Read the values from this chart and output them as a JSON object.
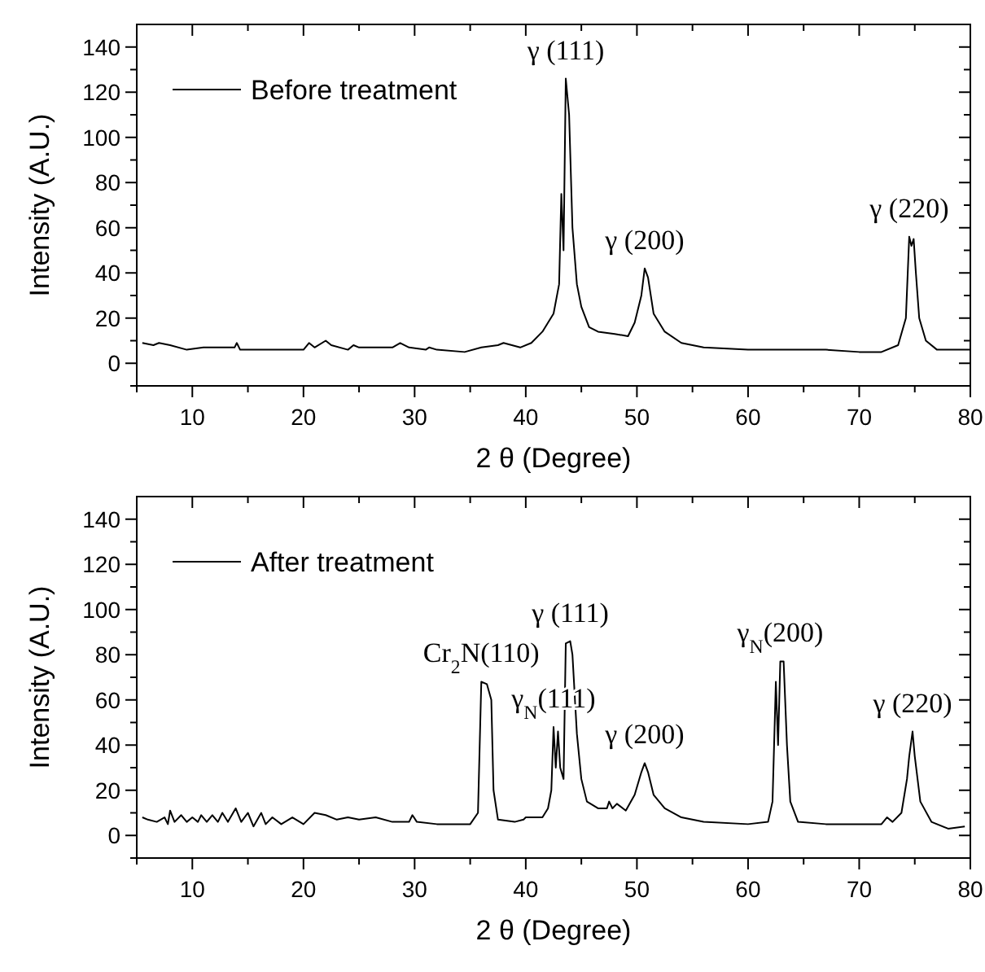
{
  "chart_data": [
    {
      "type": "line",
      "xlabel": "2 θ (Degree)",
      "ylabel": "Intensity (A.U.)",
      "legend": "top left",
      "xlim": [
        5,
        80
      ],
      "ylim": [
        -10,
        150
      ],
      "xticks": [
        {
          "value": 5,
          "label": null
        },
        10,
        {
          "value": 15,
          "label": null
        },
        20,
        {
          "value": 25,
          "label": null
        },
        30,
        {
          "value": 35,
          "label": null
        },
        40,
        {
          "value": 45,
          "label": null
        },
        50,
        {
          "value": 55,
          "label": null
        },
        60,
        {
          "value": 65,
          "label": null
        },
        70,
        {
          "value": 75,
          "label": null
        },
        80
      ],
      "yticks": [
        {
          "value": -10,
          "label": null
        },
        0,
        {
          "value": 10,
          "label": null
        },
        20,
        {
          "value": 30,
          "label": null
        },
        40,
        {
          "value": 50,
          "label": null
        },
        60,
        {
          "value": 70,
          "label": null
        },
        80,
        {
          "value": 90,
          "label": null
        },
        100,
        {
          "value": 110,
          "label": null
        },
        120,
        {
          "value": 130,
          "label": null
        },
        140
      ],
      "annotations": [
        {
          "text": "γ (111)",
          "x": 43.6,
          "y": 126
        },
        {
          "text": "γ (200)",
          "x": 50.7,
          "y": 42
        },
        {
          "text": "γ (220)",
          "x": 74.5,
          "y": 56
        }
      ],
      "series": [
        {
          "name": "Before treatment",
          "color": "#000000",
          "x": [
            5.5,
            6.5,
            7,
            8,
            9.5,
            11,
            13.8,
            14,
            14.3,
            16,
            20,
            20.5,
            21,
            22,
            22.5,
            24,
            24.5,
            25,
            28,
            28.7,
            29.5,
            31,
            31.3,
            32,
            34.5,
            36,
            37.5,
            38,
            39.5,
            40.5,
            41.5,
            42.5,
            43,
            43.2,
            43.4,
            43.6,
            43.9,
            44.2,
            44.6,
            45,
            45.7,
            46.5,
            48,
            49.2,
            49.8,
            50.4,
            50.7,
            51,
            51.5,
            52.5,
            54,
            56,
            60,
            67,
            70,
            72,
            73.5,
            74.2,
            74.5,
            74.7,
            74.9,
            75.1,
            75.4,
            76,
            77,
            80
          ],
          "values": [
            9,
            8,
            9,
            8,
            6,
            7,
            7,
            9,
            6,
            6,
            6,
            9,
            7,
            10,
            8,
            6,
            8,
            7,
            7,
            9,
            7,
            6,
            7,
            6,
            5,
            7,
            8,
            9,
            7,
            9,
            14,
            22,
            35,
            75,
            50,
            126,
            110,
            60,
            35,
            25,
            16,
            14,
            13,
            12,
            18,
            30,
            42,
            38,
            22,
            14,
            9,
            7,
            6,
            6,
            5,
            5,
            8,
            20,
            56,
            52,
            55,
            40,
            20,
            10,
            6,
            6
          ]
        }
      ]
    },
    {
      "type": "line",
      "xlabel": "2 θ (Degree)",
      "ylabel": "Intensity (A.U.)",
      "legend": "top left",
      "xlim": [
        5,
        80
      ],
      "ylim": [
        -10,
        150
      ],
      "xticks": [
        {
          "value": 5,
          "label": null
        },
        10,
        {
          "value": 15,
          "label": null
        },
        20,
        {
          "value": 25,
          "label": null
        },
        30,
        {
          "value": 35,
          "label": null
        },
        40,
        {
          "value": 45,
          "label": null
        },
        50,
        {
          "value": 55,
          "label": null
        },
        60,
        {
          "value": 65,
          "label": null
        },
        70,
        {
          "value": 75,
          "label": null
        },
        80
      ],
      "yticks": [
        {
          "value": -10,
          "label": null
        },
        0,
        {
          "value": 10,
          "label": null
        },
        20,
        {
          "value": 30,
          "label": null
        },
        40,
        {
          "value": 50,
          "label": null
        },
        60,
        {
          "value": 70,
          "label": null
        },
        80,
        {
          "value": 90,
          "label": null
        },
        100,
        {
          "value": 110,
          "label": null
        },
        120,
        {
          "value": 130,
          "label": null
        },
        140
      ],
      "annotations": [
        {
          "text": "Cr$_{2}$N(110)",
          "x": 36,
          "y": 68
        },
        {
          "text": "γ$_{N}$(111)",
          "x": 42.5,
          "y": 48
        },
        {
          "text": "γ (111)",
          "x": 44,
          "y": 86
        },
        {
          "text": "γ (200)",
          "x": 50.7,
          "y": 32
        },
        {
          "text": "γ$_{N}$(200)",
          "x": 62.9,
          "y": 77
        },
        {
          "text": "γ (220)",
          "x": 74.8,
          "y": 46
        }
      ],
      "series": [
        {
          "name": "After treatment",
          "color": "#000000",
          "x": [
            5.5,
            6,
            6.8,
            7.5,
            7.8,
            8,
            8.4,
            9,
            9.5,
            10,
            10.5,
            10.8,
            11.3,
            11.8,
            12.3,
            12.7,
            13.2,
            13.9,
            14.4,
            15,
            15.5,
            16.2,
            16.6,
            17.2,
            18,
            19,
            20,
            21,
            22,
            23,
            24,
            25,
            26.5,
            28,
            29.5,
            29.8,
            30.2,
            32,
            35,
            35.7,
            36,
            36.5,
            36.9,
            37.1,
            37.5,
            39,
            39.8,
            40,
            41.5,
            42,
            42.3,
            42.5,
            42.7,
            42.9,
            43.1,
            43.4,
            43.6,
            44,
            44.2,
            44.6,
            45,
            45.5,
            46.5,
            47.3,
            47.5,
            47.8,
            48.2,
            49,
            49.8,
            50.4,
            50.7,
            51,
            51.5,
            52.5,
            54,
            56,
            60,
            61.8,
            62.2,
            62.4,
            62.5,
            62.7,
            62.9,
            63.2,
            63.5,
            63.8,
            64.5,
            67,
            72,
            72.5,
            73,
            73.8,
            74.3,
            74.5,
            74.8,
            75,
            75.5,
            76.5,
            78,
            79.5
          ],
          "values": [
            8,
            7,
            6,
            8,
            5,
            11,
            6,
            9,
            6,
            8,
            6,
            9,
            6,
            9,
            6,
            10,
            6,
            12,
            6,
            10,
            4,
            10,
            5,
            8,
            5,
            8,
            5,
            10,
            9,
            7,
            8,
            7,
            8,
            6,
            6,
            9,
            6,
            5,
            5,
            10,
            68,
            67,
            60,
            20,
            7,
            6,
            7,
            8,
            8,
            12,
            20,
            48,
            30,
            46,
            30,
            25,
            85,
            86,
            80,
            45,
            25,
            15,
            12,
            12,
            15,
            12,
            14,
            11,
            18,
            28,
            32,
            28,
            18,
            12,
            8,
            6,
            5,
            6,
            15,
            50,
            68,
            40,
            77,
            77,
            40,
            15,
            6,
            5,
            5,
            8,
            6,
            10,
            25,
            35,
            46,
            35,
            15,
            6,
            3,
            4
          ]
        }
      ]
    }
  ]
}
